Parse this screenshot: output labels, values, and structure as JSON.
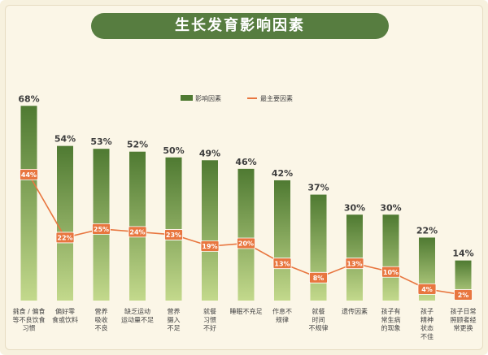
{
  "title": "生长发育影响因素",
  "colors": {
    "background": "#fbf6e7",
    "title_bg": "#577d40",
    "bar_top": "#4f7a32",
    "bar_bottom": "#c3d98c",
    "line": "#e8763f",
    "marker": "#e8763f",
    "marker_text": "#ffffff",
    "value_text": "#3d3d3d"
  },
  "chart_data": {
    "type": "bar",
    "categories": [
      "挑食／偏食等不良饮食习惯",
      "偏好零食或饮料",
      "营养吸收不良",
      "缺乏运动运动量不足",
      "营养摄入不足",
      "就餐习惯不好",
      "睡眠不充足",
      "作息不规律",
      "就餐时间不规律",
      "遗传因素",
      "孩子有常生病的现象",
      "孩子精神状态不佳",
      "孩子日常照顾者经常更换"
    ],
    "category_lines": [
      [
        "挑食 / 偏食",
        "等不良饮食",
        "习惯"
      ],
      [
        "偏好零",
        "食或饮料"
      ],
      [
        "营养",
        "吸收",
        "不良"
      ],
      [
        "缺乏运动",
        "运动量不足"
      ],
      [
        "营养",
        "摄入",
        "不足"
      ],
      [
        "就餐",
        "习惯",
        "不好"
      ],
      [
        "睡眠不充足"
      ],
      [
        "作息不",
        "规律"
      ],
      [
        "就餐",
        "时间",
        "不规律"
      ],
      [
        "遗传因素"
      ],
      [
        "孩子有",
        "常生病",
        "的现象"
      ],
      [
        "孩子",
        "精神",
        "状态",
        "不佳"
      ],
      [
        "孩子日常",
        "照顾者经",
        "常更换"
      ]
    ],
    "series": [
      {
        "name": "影响因素",
        "kind": "bar",
        "values": [
          68,
          54,
          53,
          52,
          50,
          49,
          46,
          42,
          37,
          30,
          30,
          22,
          14
        ],
        "labels": [
          "68%",
          "54%",
          "53%",
          "52%",
          "50%",
          "49%",
          "46%",
          "42%",
          "37%",
          "30%",
          "30%",
          "22%",
          "14%"
        ]
      },
      {
        "name": "最主要因素",
        "kind": "line",
        "values": [
          44,
          22,
          25,
          24,
          23,
          19,
          20,
          13,
          8,
          13,
          10,
          4,
          2
        ],
        "labels": [
          "44%",
          "22%",
          "25%",
          "24%",
          "23%",
          "19%",
          "20%",
          "13%",
          "8%",
          "13%",
          "10%",
          "4%",
          "2%"
        ]
      }
    ],
    "ylim": [
      0,
      70
    ],
    "unit": "%",
    "legend_position": "top-center",
    "grid": false
  }
}
